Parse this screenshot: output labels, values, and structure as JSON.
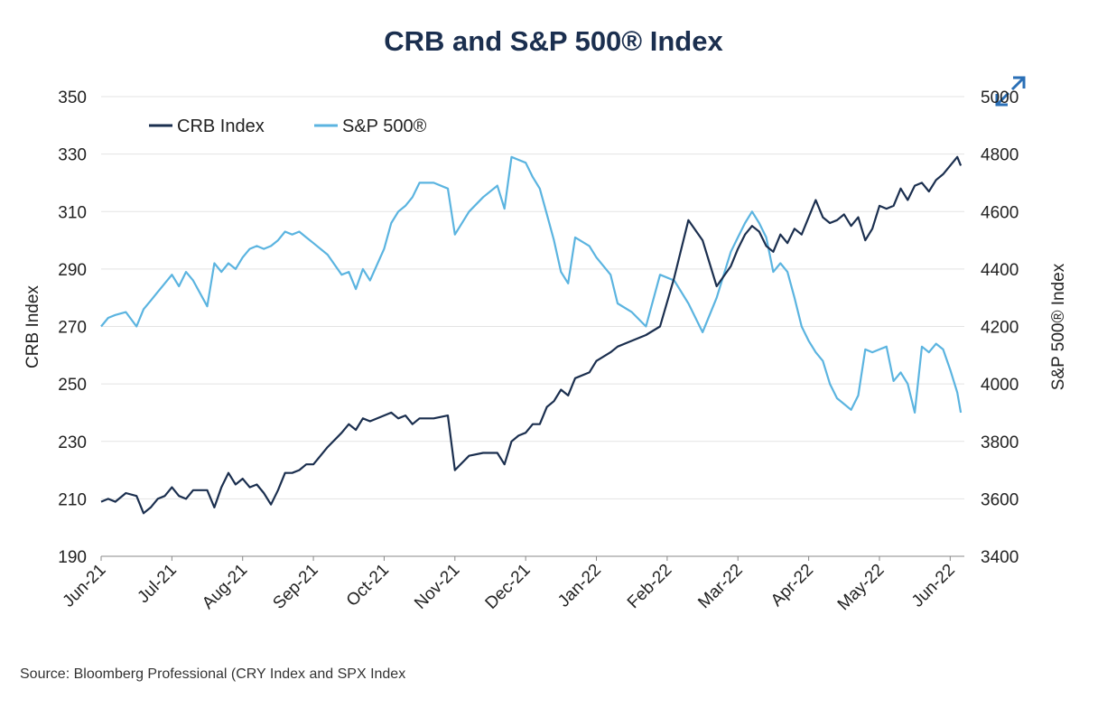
{
  "chart_data": {
    "type": "line",
    "title": "CRB and S&P 500® Index",
    "source": "Source: Bloomberg Professional (CRY Index and SPX Index",
    "ylabel_left": "CRB Index",
    "ylabel_right": "S&P 500® Index",
    "ylim_left": [
      190,
      350
    ],
    "ylim_right": [
      3400,
      5000
    ],
    "yticks_left": [
      "350",
      "330",
      "310",
      "290",
      "270",
      "250",
      "230",
      "210",
      "190"
    ],
    "yticks_right": [
      "5000",
      "4800",
      "4600",
      "4400",
      "4200",
      "4000",
      "3800",
      "3600",
      "3400"
    ],
    "x_labels": [
      "Jun-21",
      "Jul-21",
      "Aug-21",
      "Sep-21",
      "Oct-21",
      "Nov-21",
      "Dec-21",
      "Jan-22",
      "Feb-22",
      "Mar-22",
      "Apr-22",
      "May-22",
      "Jun-22"
    ],
    "x_range": [
      0,
      12.2
    ],
    "grid": true,
    "legend_position": "top-left",
    "series": [
      {
        "name": "CRB Index",
        "axis": "left",
        "color": "#1b2f4f",
        "x": [
          0,
          0.1,
          0.2,
          0.35,
          0.5,
          0.6,
          0.7,
          0.8,
          0.9,
          1.0,
          1.1,
          1.2,
          1.3,
          1.5,
          1.6,
          1.7,
          1.8,
          1.9,
          2.0,
          2.1,
          2.2,
          2.3,
          2.4,
          2.5,
          2.6,
          2.7,
          2.8,
          2.9,
          3.0,
          3.2,
          3.4,
          3.5,
          3.6,
          3.7,
          3.8,
          4.0,
          4.1,
          4.2,
          4.3,
          4.4,
          4.5,
          4.7,
          4.9,
          5.0,
          5.2,
          5.4,
          5.6,
          5.7,
          5.8,
          5.9,
          6.0,
          6.1,
          6.2,
          6.3,
          6.4,
          6.5,
          6.6,
          6.7,
          6.9,
          7.0,
          7.2,
          7.3,
          7.5,
          7.7,
          7.9,
          8.1,
          8.3,
          8.5,
          8.7,
          8.9,
          9.0,
          9.1,
          9.2,
          9.3,
          9.4,
          9.5,
          9.6,
          9.7,
          9.8,
          9.9,
          10.0,
          10.1,
          10.2,
          10.3,
          10.4,
          10.5,
          10.6,
          10.7,
          10.8,
          10.9,
          11.0,
          11.1,
          11.2,
          11.3,
          11.4,
          11.5,
          11.6,
          11.7,
          11.8,
          11.9,
          12.0,
          12.1,
          12.15
        ],
        "values": [
          209,
          210,
          209,
          212,
          211,
          205,
          207,
          210,
          211,
          214,
          211,
          210,
          213,
          213,
          207,
          214,
          219,
          215,
          217,
          214,
          215,
          212,
          208,
          213,
          219,
          219,
          220,
          222,
          222,
          228,
          233,
          236,
          234,
          238,
          237,
          239,
          240,
          238,
          239,
          236,
          238,
          238,
          239,
          220,
          225,
          226,
          226,
          222,
          230,
          232,
          233,
          236,
          236,
          242,
          244,
          248,
          246,
          252,
          254,
          258,
          261,
          263,
          265,
          267,
          270,
          287,
          307,
          300,
          284,
          291,
          297,
          302,
          305,
          303,
          298,
          296,
          302,
          299,
          304,
          302,
          308,
          314,
          308,
          306,
          307,
          309,
          305,
          308,
          300,
          304,
          312,
          311,
          312,
          318,
          314,
          319,
          320,
          317,
          321,
          323,
          326,
          329,
          326
        ]
      },
      {
        "name": "S&P 500®",
        "axis": "right",
        "color": "#5bb4e0",
        "x": [
          0,
          0.1,
          0.2,
          0.35,
          0.5,
          0.6,
          0.7,
          0.8,
          0.9,
          1.0,
          1.1,
          1.2,
          1.3,
          1.5,
          1.6,
          1.7,
          1.8,
          1.9,
          2.0,
          2.1,
          2.2,
          2.3,
          2.4,
          2.5,
          2.6,
          2.7,
          2.8,
          2.9,
          3.0,
          3.2,
          3.4,
          3.5,
          3.6,
          3.7,
          3.8,
          4.0,
          4.1,
          4.2,
          4.3,
          4.4,
          4.5,
          4.7,
          4.9,
          5.0,
          5.2,
          5.4,
          5.6,
          5.7,
          5.8,
          5.9,
          6.0,
          6.1,
          6.2,
          6.3,
          6.4,
          6.5,
          6.6,
          6.7,
          6.9,
          7.0,
          7.2,
          7.3,
          7.5,
          7.7,
          7.9,
          8.1,
          8.3,
          8.5,
          8.7,
          8.9,
          9.0,
          9.1,
          9.2,
          9.3,
          9.4,
          9.5,
          9.6,
          9.7,
          9.8,
          9.9,
          10.0,
          10.1,
          10.2,
          10.3,
          10.4,
          10.5,
          10.6,
          10.7,
          10.8,
          10.9,
          11.0,
          11.1,
          11.2,
          11.3,
          11.4,
          11.5,
          11.6,
          11.7,
          11.8,
          11.9,
          12.0,
          12.1,
          12.15
        ],
        "values": [
          4200,
          4230,
          4240,
          4250,
          4200,
          4260,
          4290,
          4320,
          4350,
          4380,
          4340,
          4390,
          4360,
          4270,
          4420,
          4390,
          4420,
          4400,
          4440,
          4470,
          4480,
          4470,
          4480,
          4500,
          4530,
          4520,
          4530,
          4510,
          4490,
          4450,
          4380,
          4390,
          4330,
          4400,
          4360,
          4470,
          4560,
          4600,
          4620,
          4650,
          4700,
          4700,
          4680,
          4520,
          4600,
          4650,
          4690,
          4610,
          4790,
          4780,
          4770,
          4720,
          4680,
          4590,
          4500,
          4390,
          4350,
          4510,
          4480,
          4440,
          4380,
          4280,
          4250,
          4200,
          4380,
          4360,
          4280,
          4180,
          4300,
          4460,
          4510,
          4560,
          4600,
          4560,
          4510,
          4390,
          4420,
          4390,
          4300,
          4200,
          4150,
          4110,
          4080,
          4000,
          3950,
          3930,
          3910,
          3960,
          4120,
          4110,
          4120,
          4130,
          4010,
          4040,
          4000,
          3900,
          4130,
          4110,
          4140,
          4120,
          4050,
          3970,
          3900
        ]
      }
    ]
  }
}
